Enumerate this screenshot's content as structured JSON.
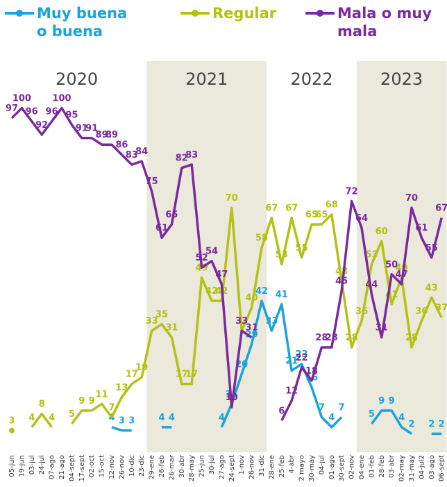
{
  "chart_data": {
    "type": "line",
    "years": [
      "2020",
      "2021",
      "2022",
      "2023"
    ],
    "categories": [
      "05-jun",
      "19-jun",
      "03-jul",
      "24-jul",
      "07-ago",
      "21-ago",
      "04-sept",
      "17-sept",
      "02-oct",
      "15-oct",
      "12-nov",
      "26-nov",
      "10-dic",
      "23-dic",
      "29-ene",
      "26-feb",
      "26-mar",
      "30-abr",
      "28-may",
      "25-jun",
      "30-jul",
      "27-ago",
      "24-sept",
      "1-nov",
      "26-nov",
      "31-dic",
      "28-ene",
      "25-feb",
      "4-abr",
      "2 mayo",
      "30-may",
      "04-jul",
      "01-ago",
      "30-sept",
      "02-nov",
      "04-ene",
      "01-feb",
      "28-feb",
      "03-abr",
      "02-may",
      "31-may",
      "04-jul2",
      "03-ago",
      "06-sept"
    ],
    "ylim": [
      0,
      100
    ],
    "series": [
      {
        "name": "Muy buena o buena",
        "color": "#1aa3dc",
        "values": [
          null,
          null,
          null,
          null,
          null,
          null,
          null,
          null,
          null,
          null,
          4,
          3,
          3,
          null,
          null,
          4,
          4,
          null,
          null,
          null,
          null,
          4,
          11,
          20,
          29,
          42,
          33,
          41,
          21,
          23,
          16,
          7,
          4,
          7,
          null,
          null,
          5,
          9,
          9,
          4,
          2,
          null,
          2,
          2
        ]
      },
      {
        "name": "Regular",
        "color": "#b3c213",
        "values": [
          3,
          null,
          4,
          8,
          4,
          null,
          5,
          9,
          9,
          11,
          7,
          13,
          17,
          19,
          33,
          35,
          31,
          17,
          17,
          49,
          42,
          42,
          70,
          33,
          40,
          58,
          67,
          53,
          67,
          55,
          65,
          65,
          68,
          48,
          28,
          36,
          53,
          60,
          41,
          49,
          28,
          36,
          43,
          37
        ]
      },
      {
        "name": "Mala o muy mala",
        "color": "#7b2a9e",
        "values": [
          97,
          100,
          96,
          92,
          96,
          100,
          95,
          91,
          91,
          89,
          89,
          86,
          83,
          84,
          75,
          61,
          65,
          82,
          83,
          52,
          54,
          47,
          10,
          33,
          31,
          null,
          null,
          6,
          12,
          22,
          18,
          28,
          28,
          45,
          72,
          64,
          44,
          31,
          50,
          47,
          70,
          61,
          55,
          67
        ]
      }
    ]
  }
}
